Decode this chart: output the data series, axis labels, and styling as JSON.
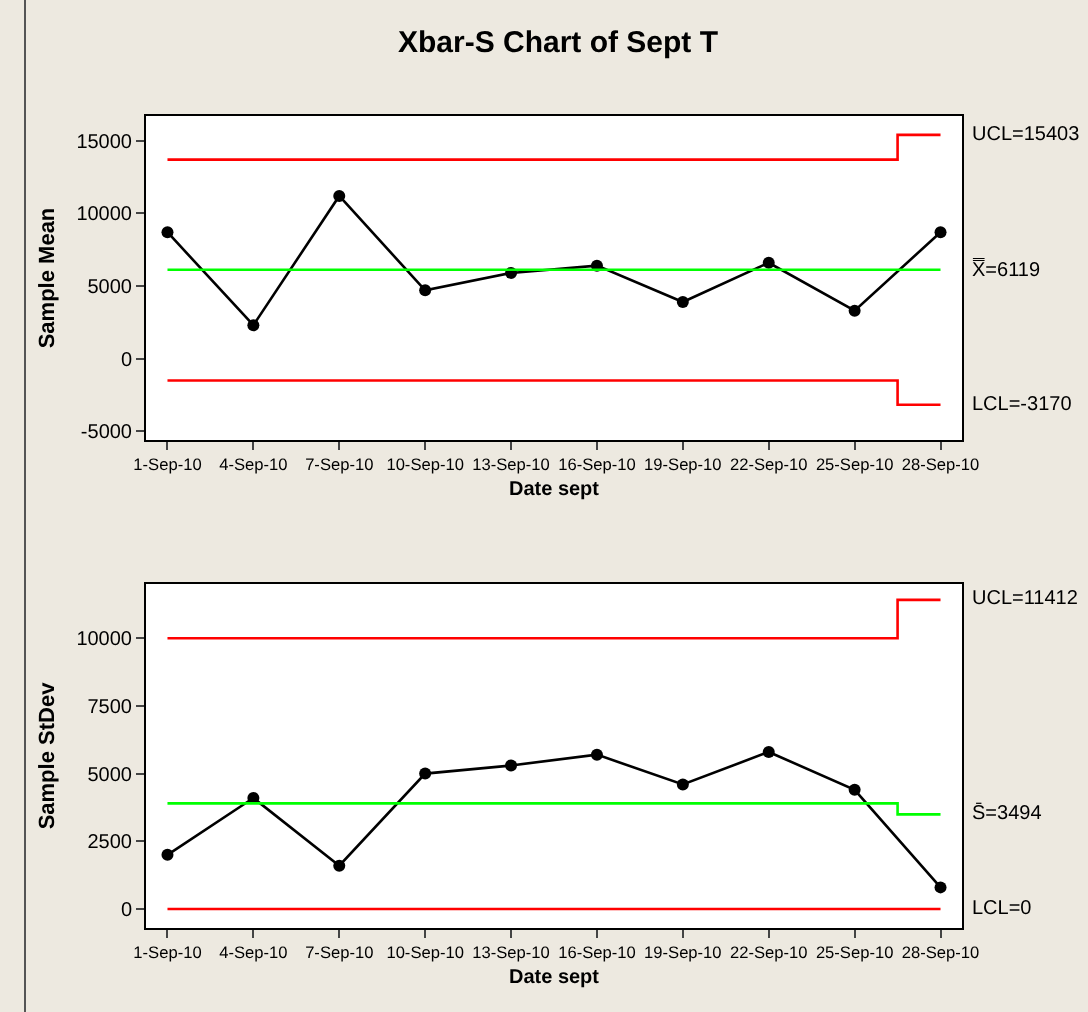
{
  "chart_data": [
    {
      "type": "line",
      "title": "Xbar-S Chart of Sept T",
      "xlabel": "Date sept",
      "ylabel": "Sample Mean",
      "categories": [
        "1-Sep-10",
        "4-Sep-10",
        "7-Sep-10",
        "10-Sep-10",
        "13-Sep-10",
        "16-Sep-10",
        "19-Sep-10",
        "22-Sep-10",
        "25-Sep-10",
        "28-Sep-10"
      ],
      "series": [
        {
          "color": "#000000",
          "marker": "circle",
          "values": [
            8700,
            2300,
            11200,
            4700,
            5900,
            6400,
            3900,
            6600,
            3300,
            8700
          ]
        },
        {
          "type": "step",
          "color": "#ff0000",
          "marker": "none",
          "values": [
            13700,
            13700,
            13700,
            13700,
            13700,
            13700,
            13700,
            13700,
            13700,
            15403
          ]
        },
        {
          "type": "step",
          "color": "#00ff00",
          "marker": "none",
          "values": [
            6119,
            6119,
            6119,
            6119,
            6119,
            6119,
            6119,
            6119,
            6119,
            6119
          ]
        },
        {
          "type": "step",
          "color": "#ff0000",
          "marker": "none",
          "values": [
            -1500,
            -1500,
            -1500,
            -1500,
            -1500,
            -1500,
            -1500,
            -1500,
            -1500,
            -3170
          ]
        }
      ],
      "ylim": [
        -5600,
        16700
      ],
      "yticks": [
        -5000,
        0,
        5000,
        10000,
        15000
      ],
      "grid": false,
      "annotations": [
        {
          "text": "UCL=15403",
          "x": "28-Sep-10",
          "y": 15403
        },
        {
          "text": "X̿=6119",
          "x": "28-Sep-10",
          "y": 6119
        },
        {
          "text": "LCL=-3170",
          "x": "28-Sep-10",
          "y": -3170
        }
      ]
    },
    {
      "type": "line",
      "xlabel": "Date sept",
      "ylabel": "Sample StDev",
      "categories": [
        "1-Sep-10",
        "4-Sep-10",
        "7-Sep-10",
        "10-Sep-10",
        "13-Sep-10",
        "16-Sep-10",
        "19-Sep-10",
        "22-Sep-10",
        "25-Sep-10",
        "28-Sep-10"
      ],
      "series": [
        {
          "color": "#000000",
          "marker": "circle",
          "values": [
            2000,
            4100,
            1600,
            5000,
            5300,
            5700,
            4600,
            5800,
            4400,
            800
          ]
        },
        {
          "type": "step",
          "color": "#ff0000",
          "marker": "none",
          "values": [
            10000,
            10000,
            10000,
            10000,
            10000,
            10000,
            10000,
            10000,
            10000,
            11412
          ]
        },
        {
          "type": "step",
          "color": "#00ff00",
          "marker": "none",
          "values": [
            3900,
            3900,
            3900,
            3900,
            3900,
            3900,
            3900,
            3900,
            3900,
            3494
          ]
        },
        {
          "type": "step",
          "color": "#ff0000",
          "marker": "none",
          "values": [
            0,
            0,
            0,
            0,
            0,
            0,
            0,
            0,
            0,
            0
          ]
        }
      ],
      "ylim": [
        -700,
        12000
      ],
      "yticks": [
        0,
        2500,
        5000,
        7500,
        10000
      ],
      "grid": false,
      "annotations": [
        {
          "text": "UCL=11412",
          "x": "28-Sep-10",
          "y": 11412
        },
        {
          "text": "S̄=3494",
          "x": "28-Sep-10",
          "y": 3494
        },
        {
          "text": "LCL=0",
          "x": "28-Sep-10",
          "y": 0
        }
      ]
    }
  ]
}
